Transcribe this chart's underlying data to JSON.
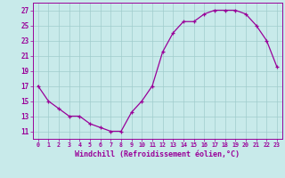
{
  "x": [
    0,
    1,
    2,
    3,
    4,
    5,
    6,
    7,
    8,
    9,
    10,
    11,
    12,
    13,
    14,
    15,
    16,
    17,
    18,
    19,
    20,
    21,
    22,
    23
  ],
  "y": [
    17,
    15,
    14,
    13,
    13,
    12,
    11.5,
    11,
    11,
    13.5,
    15,
    17,
    21.5,
    24,
    25.5,
    25.5,
    26.5,
    27,
    27,
    27,
    26.5,
    25,
    23,
    19.5
  ],
  "line_color": "#990099",
  "marker_color": "#990099",
  "bg_color": "#c8eaea",
  "grid_color": "#a0cccc",
  "xlabel": "Windchill (Refroidissement éolien,°C)",
  "yticks": [
    11,
    13,
    15,
    17,
    19,
    21,
    23,
    25,
    27
  ],
  "xlim": [
    -0.5,
    23.5
  ],
  "ylim": [
    10.0,
    28.0
  ],
  "font_color": "#990099"
}
